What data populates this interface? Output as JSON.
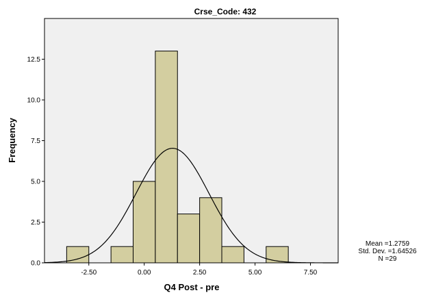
{
  "chart_data": {
    "type": "bar",
    "title": "Crse_Code: 432",
    "xlabel": "Q4 Post - pre",
    "ylabel": "Frequency",
    "xlim": [
      -4.5,
      8.75
    ],
    "ylim": [
      0,
      15
    ],
    "x_ticks": [
      -2.5,
      0,
      2.5,
      5,
      7.5
    ],
    "x_tick_labels": [
      "-2.50",
      "0.00",
      "2.50",
      "5.00",
      "7.50"
    ],
    "y_ticks": [
      0,
      2.5,
      5,
      7.5,
      10,
      12.5
    ],
    "y_tick_labels": [
      "0.0",
      "2.5",
      "5.0",
      "7.5",
      "10.0",
      "12.5"
    ],
    "bin_width": 1,
    "bins": [
      {
        "center": -3,
        "value": 1
      },
      {
        "center": -1,
        "value": 1
      },
      {
        "center": 0,
        "value": 5
      },
      {
        "center": 1,
        "value": 13
      },
      {
        "center": 2,
        "value": 3
      },
      {
        "center": 3,
        "value": 4
      },
      {
        "center": 4,
        "value": 1
      },
      {
        "center": 6,
        "value": 1
      }
    ],
    "normal_curve": {
      "mean": 1.2759,
      "std_dev": 1.64526,
      "n": 29
    },
    "stats": {
      "mean_label": "Mean =1.2759",
      "std_label": "Std. Dev. =1.64526",
      "n_label": "N =29"
    },
    "grid": false,
    "colors": {
      "bar_fill": "#d3cea0",
      "bar_stroke": "#000000",
      "plot_background": "#f0f0f0",
      "curve": "#000000"
    }
  }
}
